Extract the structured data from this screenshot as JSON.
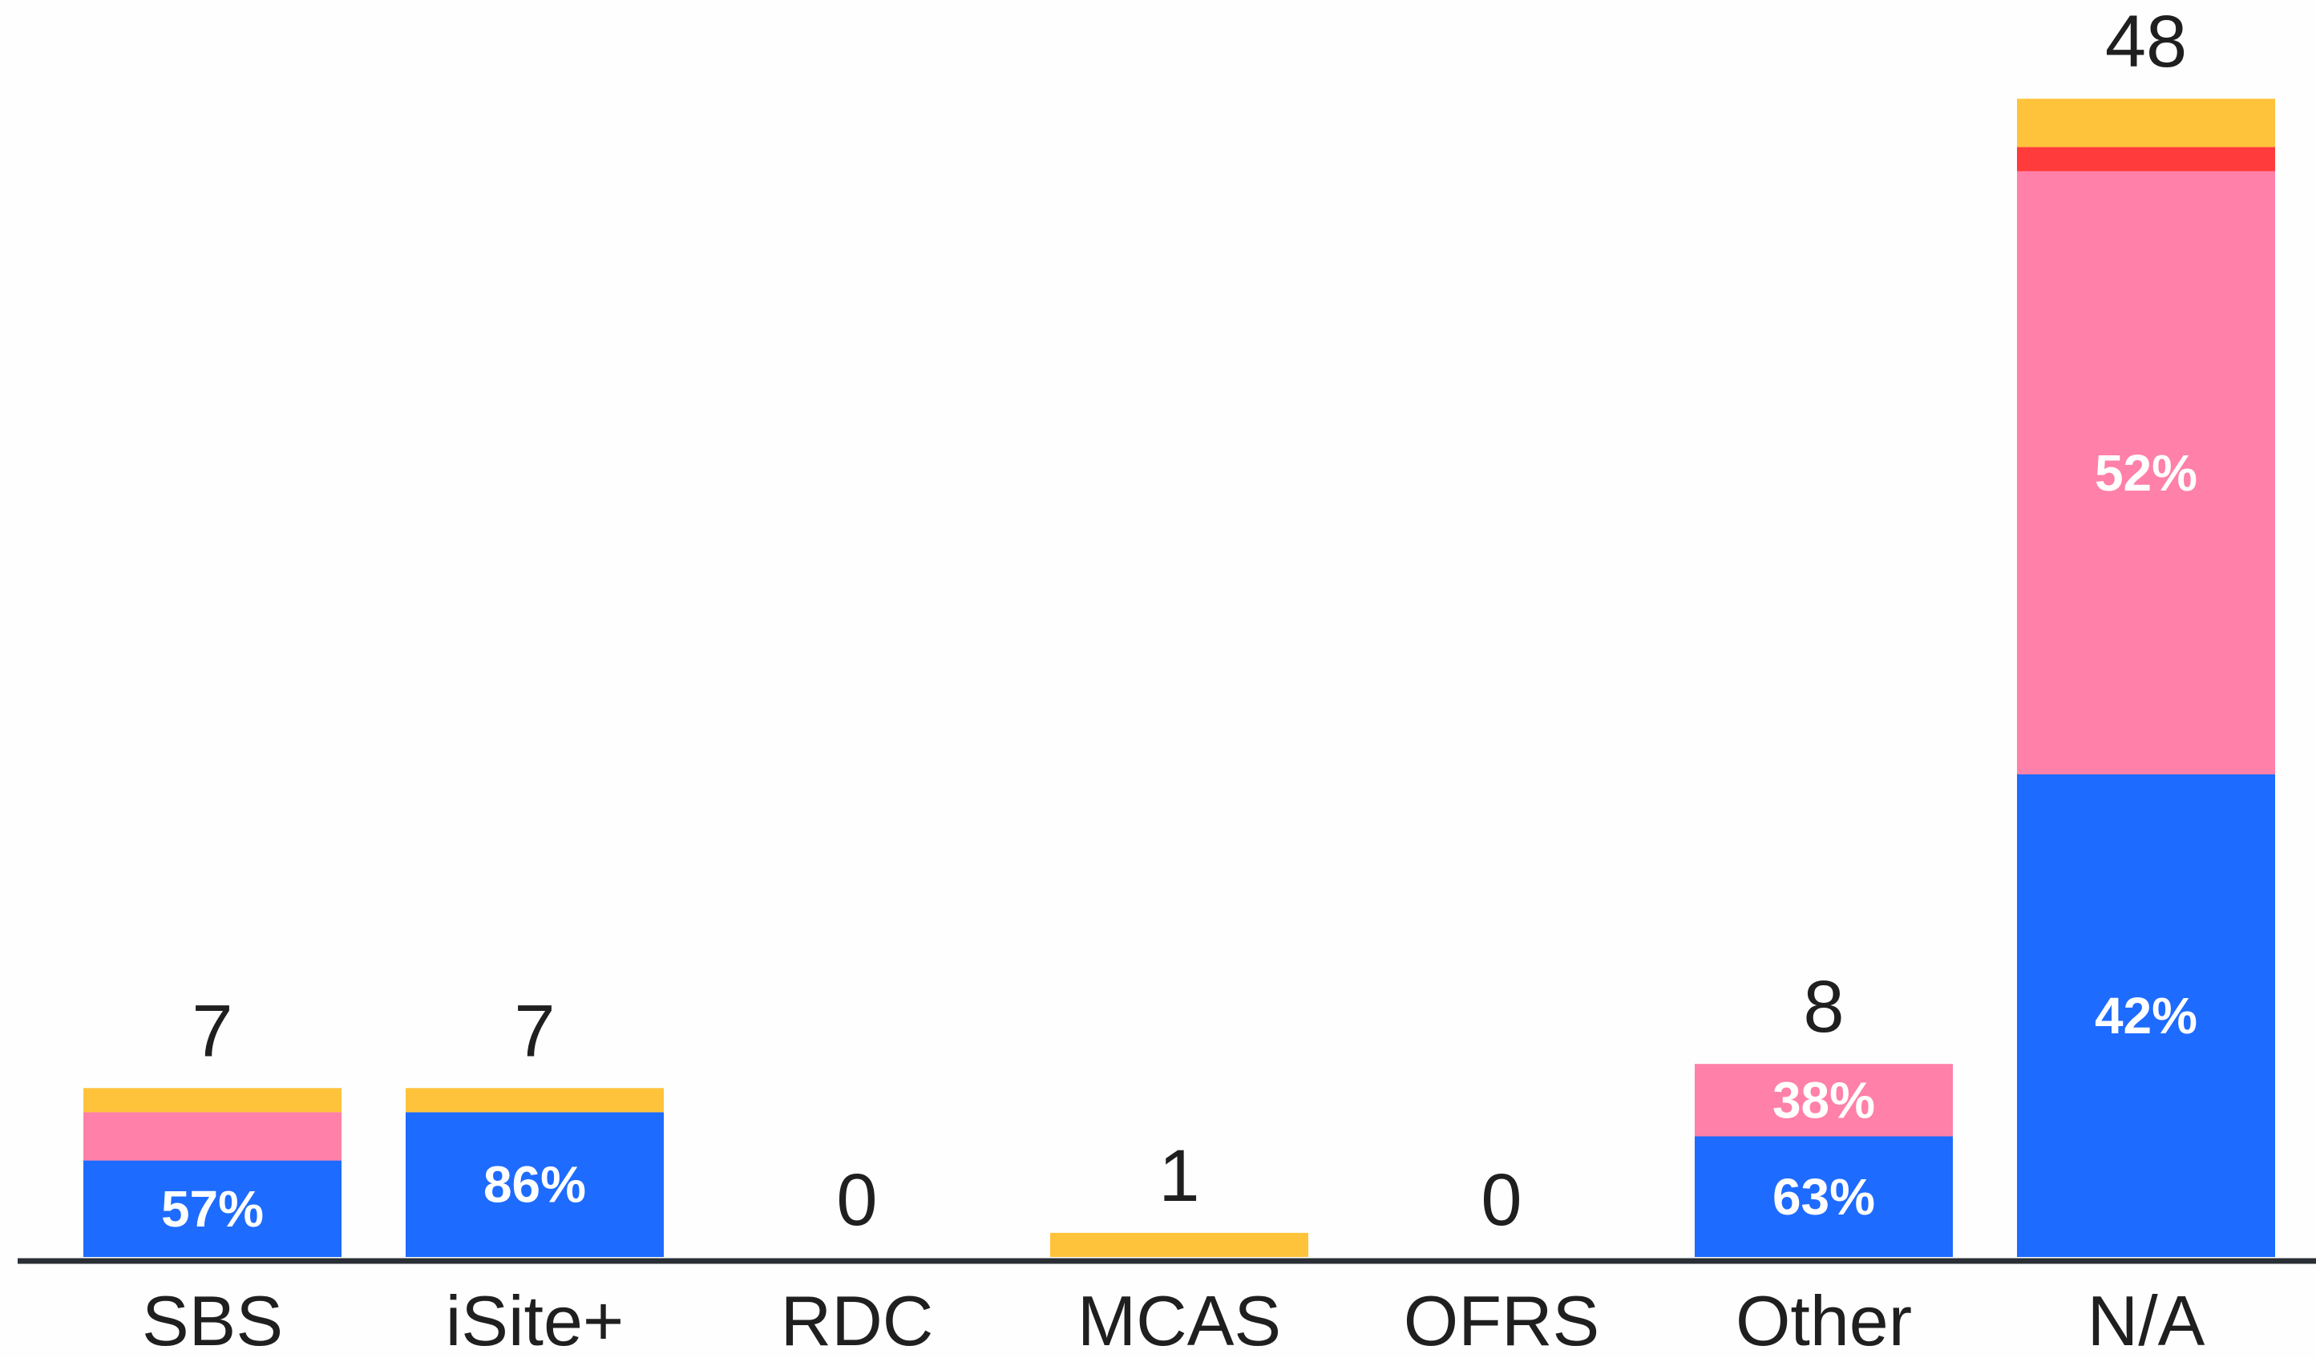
{
  "chart_data": {
    "type": "bar",
    "stacked": true,
    "categories": [
      "SBS",
      "iSite+",
      "RDC",
      "MCAS",
      "OFRS",
      "Other",
      "N/A"
    ],
    "totals": [
      "7",
      "7",
      "0",
      "1",
      "0",
      "8",
      "48"
    ],
    "series": [
      {
        "color": "#1e6bff",
        "values": [
          4,
          6,
          0,
          0,
          0,
          5,
          20
        ],
        "labels": [
          "57%",
          "86%",
          "",
          "",
          "",
          "63%",
          "42%"
        ]
      },
      {
        "color": "#ff80a8",
        "values": [
          2,
          0,
          0,
          0,
          0,
          3,
          25
        ],
        "labels": [
          "",
          "",
          "",
          "",
          "",
          "38%",
          "52%"
        ]
      },
      {
        "color": "#ff3b3b",
        "values": [
          0,
          0,
          0,
          0,
          0,
          0,
          1
        ],
        "labels": [
          "",
          "",
          "",
          "",
          "",
          "",
          ""
        ]
      },
      {
        "color": "#ffc33b",
        "values": [
          1,
          1,
          0,
          1,
          0,
          0,
          2
        ],
        "labels": [
          "",
          "",
          "",
          "",
          "",
          "",
          ""
        ]
      }
    ],
    "ylim": [
      0,
      48
    ],
    "grid": false,
    "axis_color": "#2a2f36"
  }
}
